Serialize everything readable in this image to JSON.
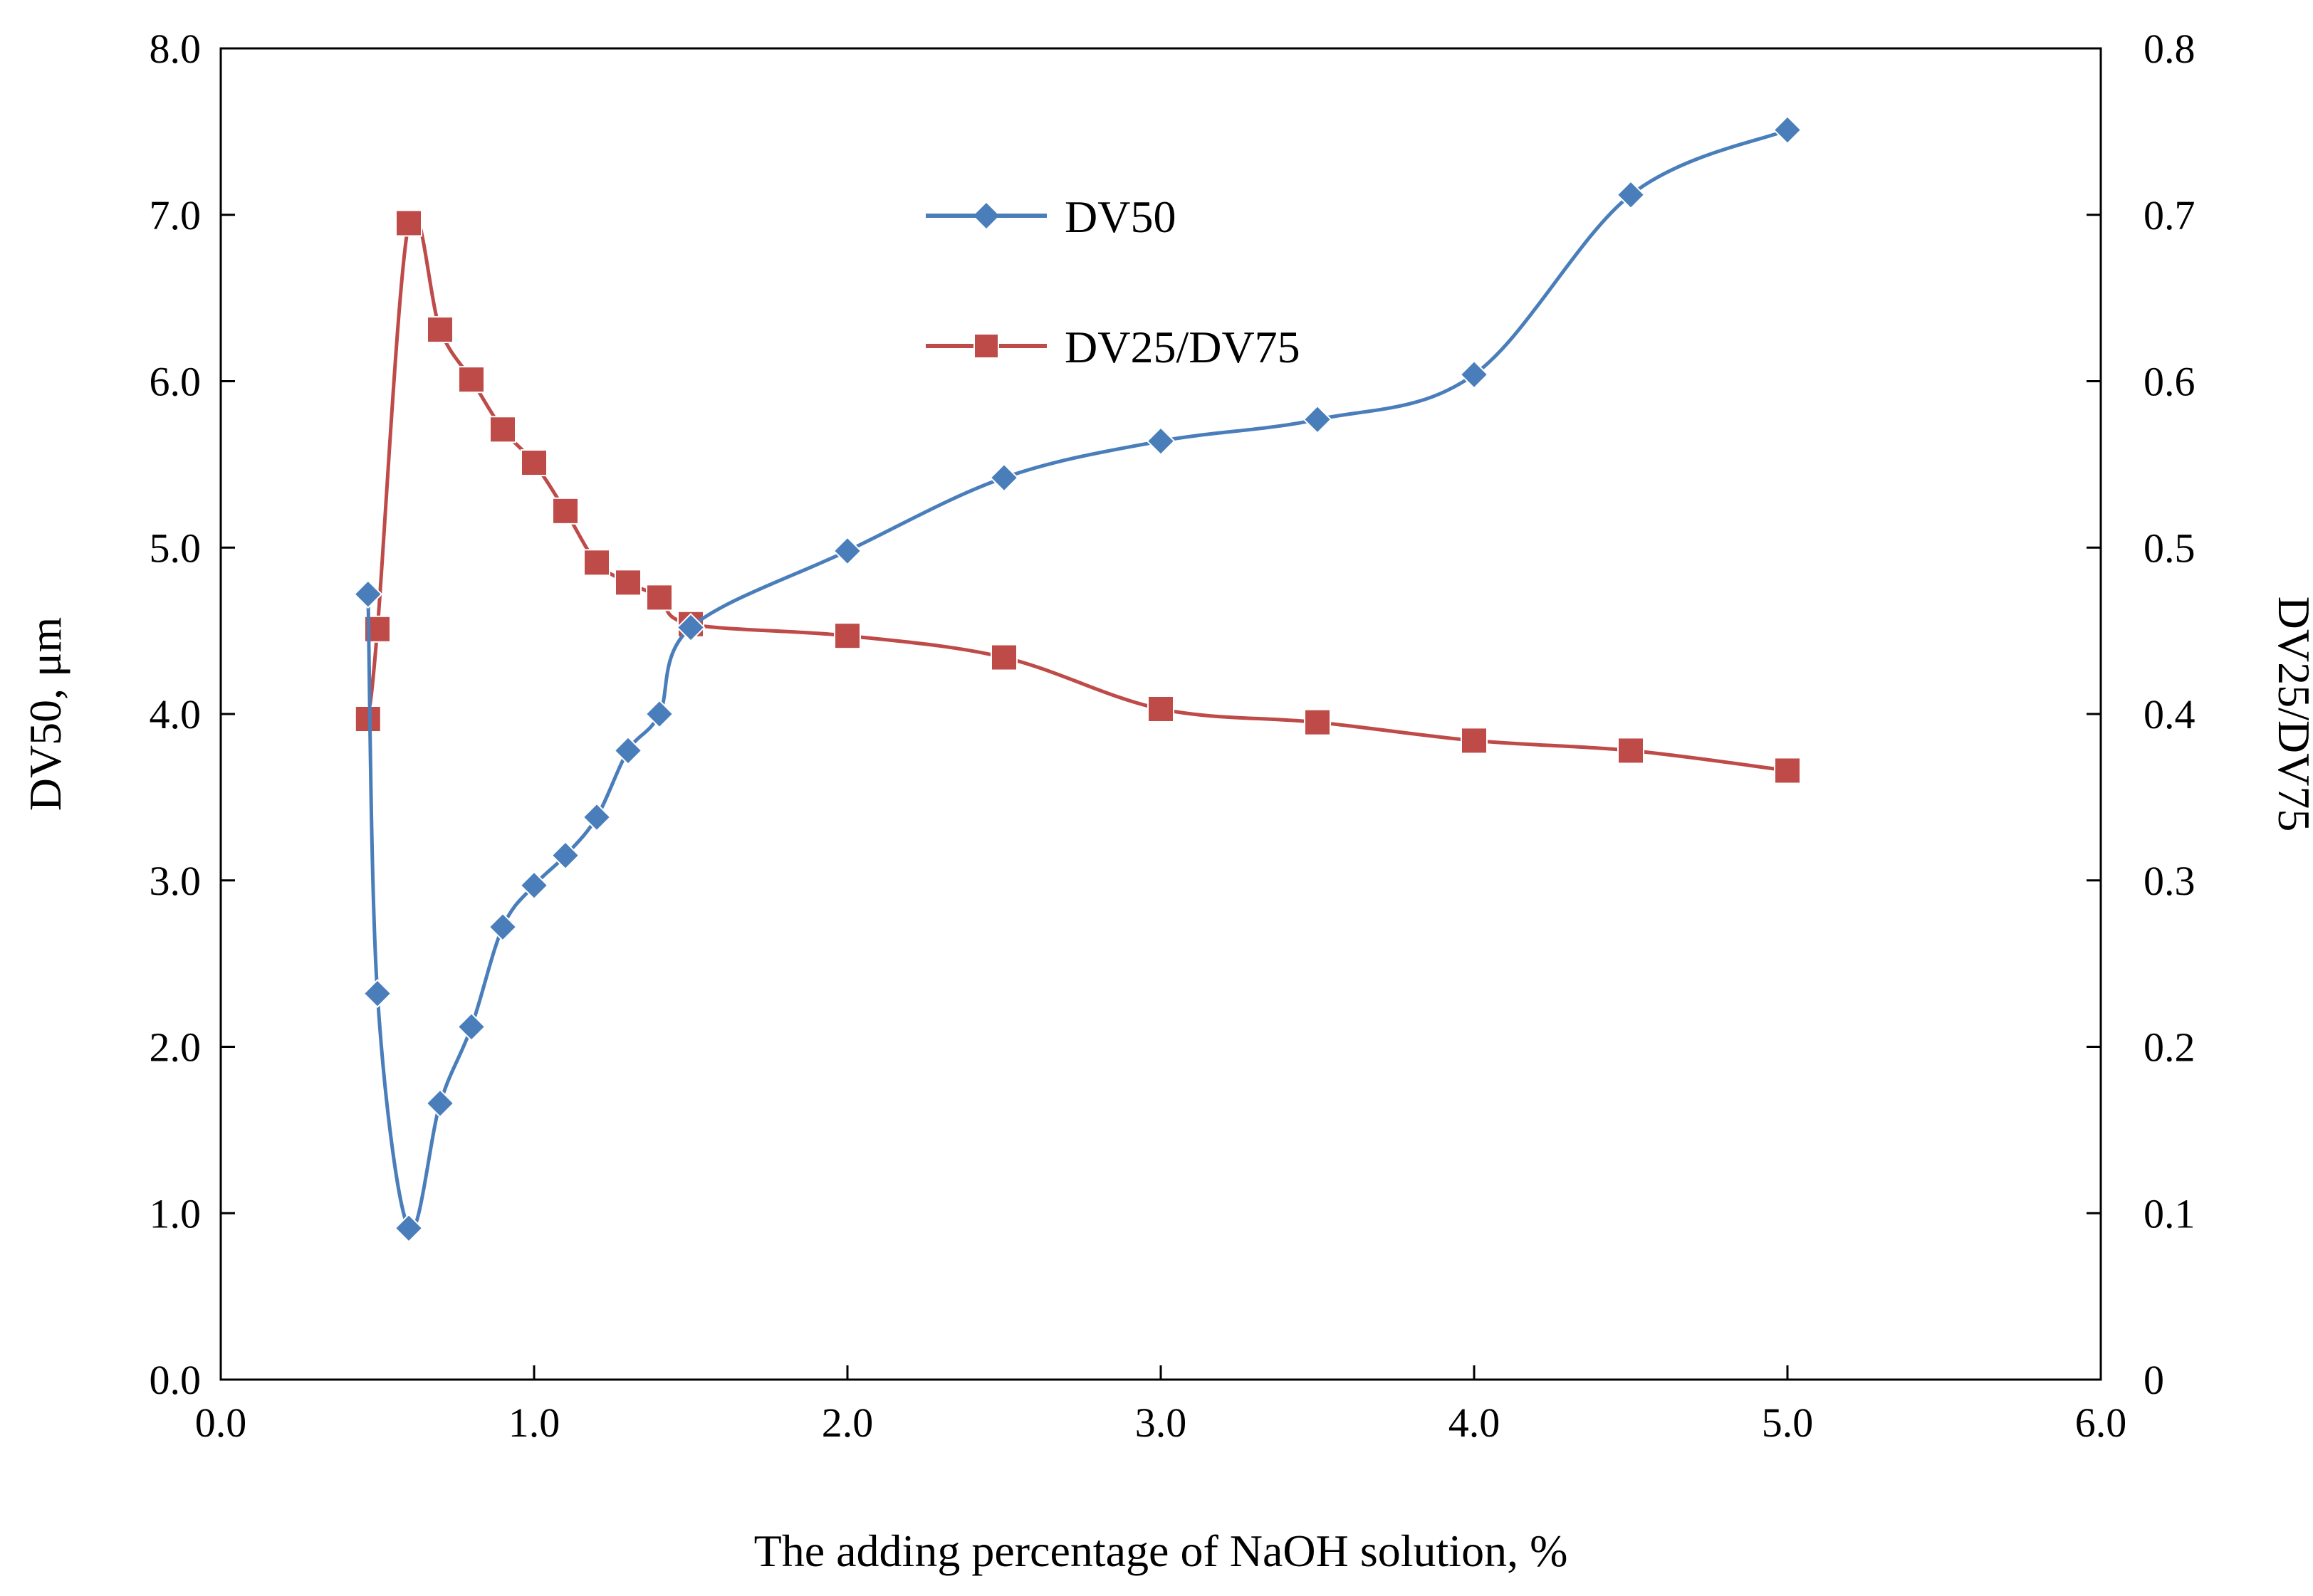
{
  "chart_data": {
    "type": "line",
    "title": "",
    "xlabel": "The adding percentage of NaOH solution, %",
    "ylabel_left": "DV50,  μm",
    "ylabel_right": "DV25/DV75",
    "xlim": [
      0,
      6
    ],
    "ylim_left": [
      0,
      8
    ],
    "ylim_right": [
      0,
      0.8
    ],
    "x_ticks": [
      "0.0",
      "1.0",
      "2.0",
      "3.0",
      "4.0",
      "5.0",
      "6.0"
    ],
    "y_left_ticks": [
      "0.0",
      "1.0",
      "2.0",
      "3.0",
      "4.0",
      "5.0",
      "6.0",
      "7.0",
      "8.0"
    ],
    "y_right_ticks": [
      "0",
      "0.1",
      "0.2",
      "0.3",
      "0.4",
      "0.5",
      "0.6",
      "0.7",
      "0.8"
    ],
    "grid": false,
    "legend_position": "top-center",
    "series": [
      {
        "name": "DV50",
        "axis": "left",
        "color": "#4a7ebb",
        "marker": "diamond",
        "x": [
          0.47,
          0.5,
          0.6,
          0.7,
          0.8,
          0.9,
          1.0,
          1.1,
          1.2,
          1.3,
          1.4,
          1.5,
          2.0,
          2.5,
          3.0,
          3.5,
          4.0,
          4.5,
          5.0
        ],
        "values": [
          4.72,
          2.32,
          0.91,
          1.66,
          2.12,
          2.72,
          2.97,
          3.15,
          3.38,
          3.78,
          4.0,
          4.52,
          4.98,
          5.42,
          5.64,
          5.77,
          6.04,
          7.12,
          7.51
        ]
      },
      {
        "name": "DV25/DV75",
        "axis": "right",
        "color": "#be4b48",
        "marker": "square",
        "x": [
          0.47,
          0.5,
          0.6,
          0.7,
          0.8,
          0.9,
          1.0,
          1.1,
          1.2,
          1.3,
          1.4,
          1.5,
          2.0,
          2.5,
          3.0,
          3.5,
          4.0,
          4.5,
          5.0
        ],
        "values": [
          0.397,
          0.451,
          0.695,
          0.631,
          0.601,
          0.571,
          0.551,
          0.522,
          0.491,
          0.479,
          0.47,
          0.454,
          0.447,
          0.434,
          0.403,
          0.395,
          0.384,
          0.378,
          0.366
        ]
      }
    ]
  }
}
